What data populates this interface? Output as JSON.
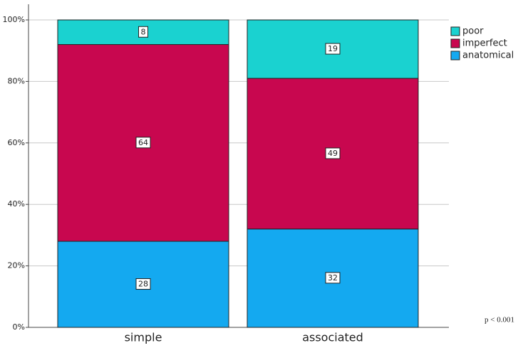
{
  "chart_data": {
    "type": "stacked_bar_100",
    "categories": [
      "simple",
      "associated"
    ],
    "series": [
      {
        "name": "anatomical",
        "color": "#14a9f0",
        "values": [
          28,
          32
        ]
      },
      {
        "name": "imperfect",
        "color": "#c8074f",
        "values": [
          64,
          49
        ]
      },
      {
        "name": "poor",
        "color": "#1ad2d0",
        "values": [
          8,
          19
        ]
      }
    ],
    "ylim": [
      0,
      100
    ],
    "yticks": [
      {
        "value": 0,
        "label": "0%"
      },
      {
        "value": 20,
        "label": "20%"
      },
      {
        "value": 40,
        "label": "40%"
      },
      {
        "value": 60,
        "label": "60%"
      },
      {
        "value": 80,
        "label": "80%"
      },
      {
        "value": 100,
        "label": "100%"
      }
    ],
    "grid": true,
    "legend_position": "right",
    "annotation": "p < 0.001"
  }
}
